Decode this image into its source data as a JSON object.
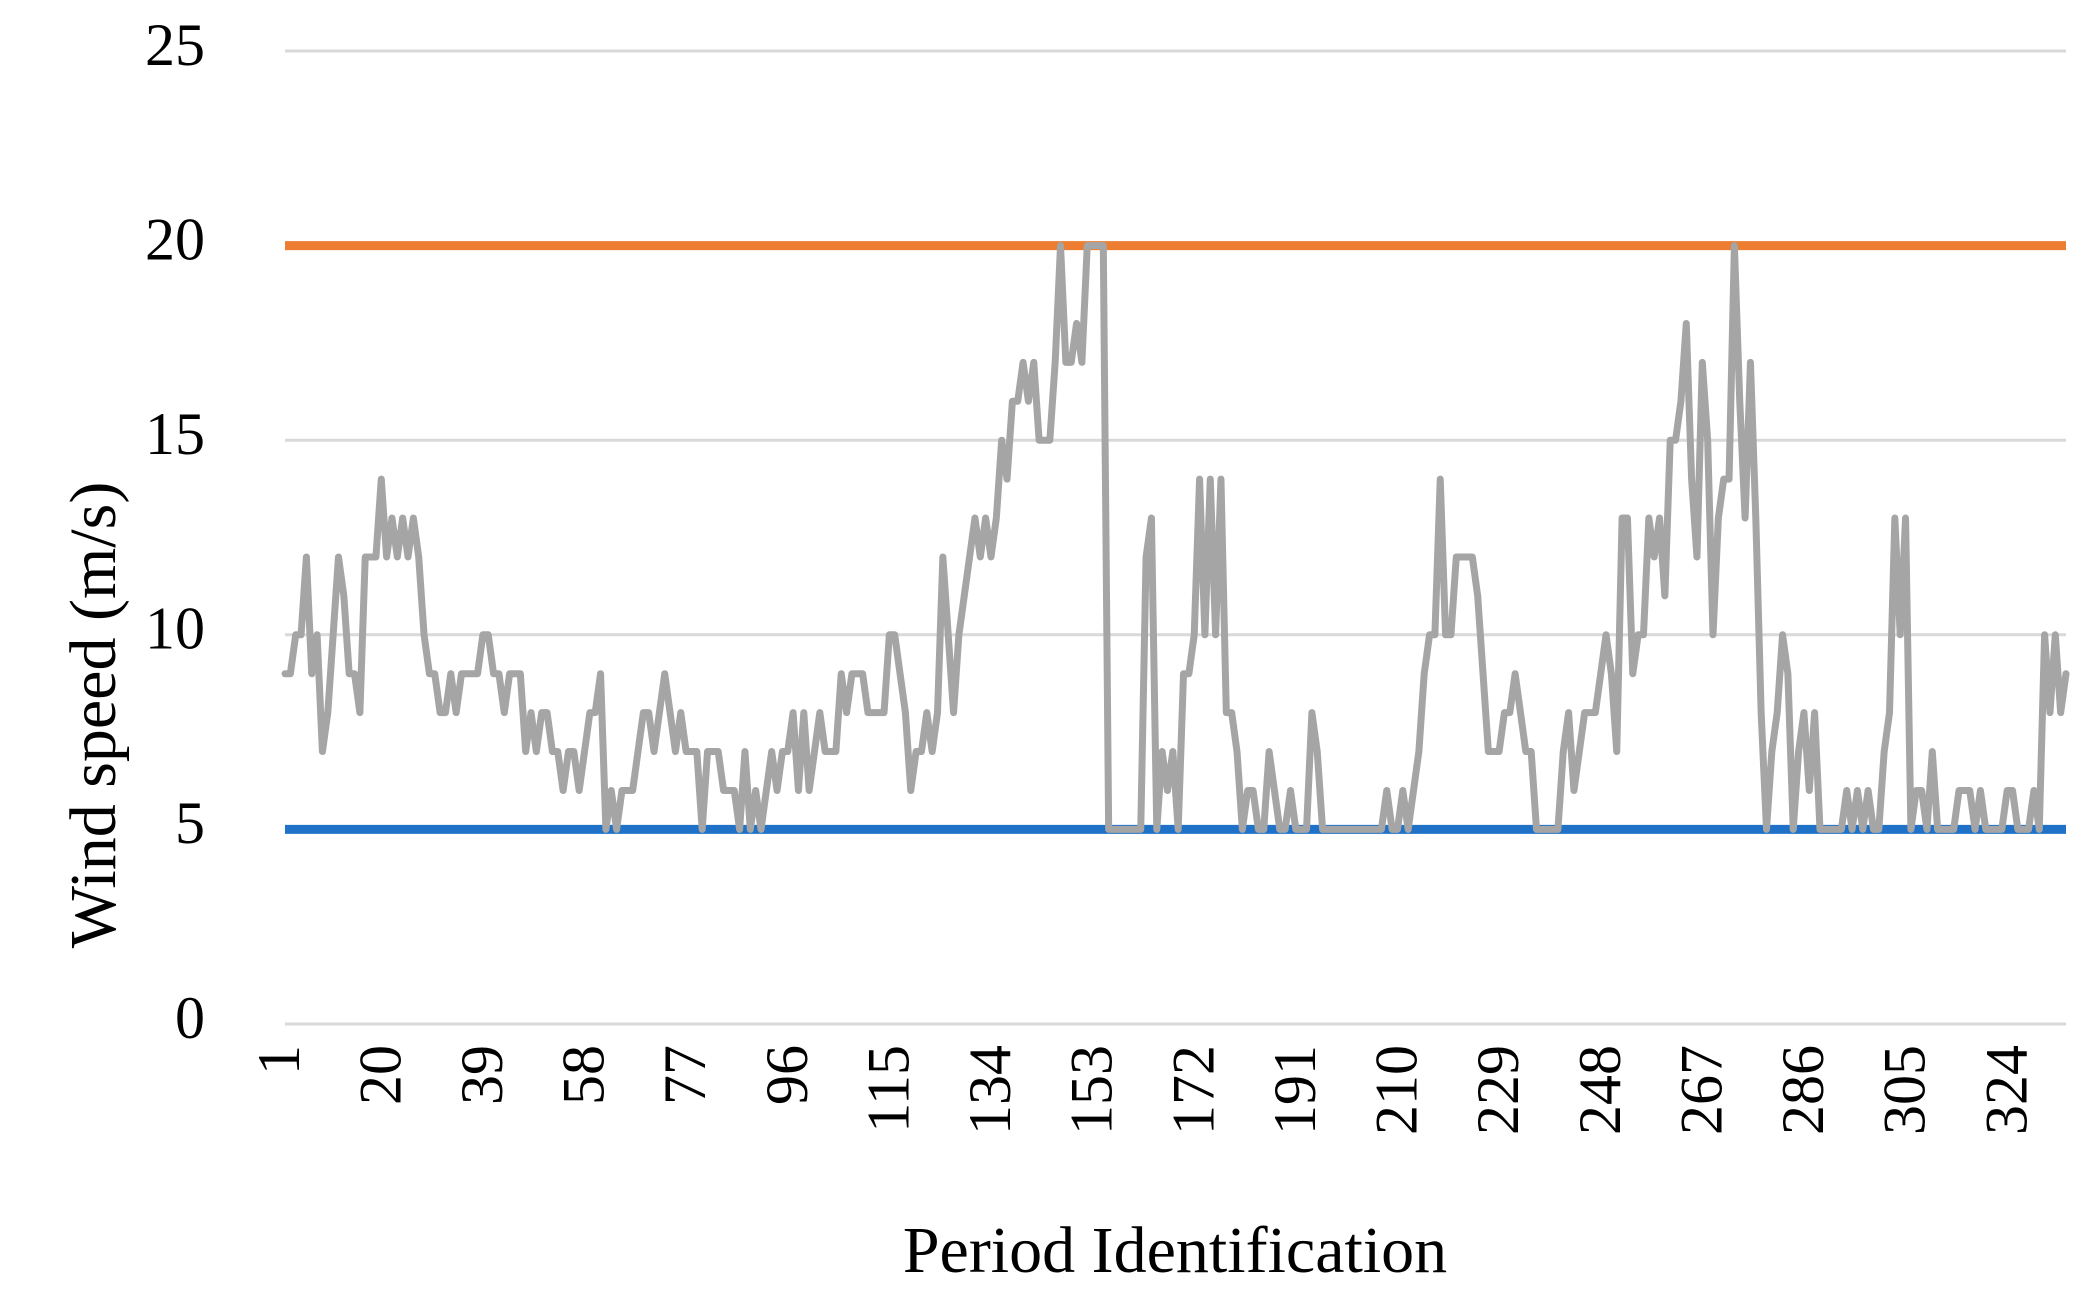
{
  "chart_data": {
    "type": "line",
    "ylabel": "Wind speed (m/s)",
    "xlabel": "Period Identification",
    "xlim": [
      1,
      334
    ],
    "xticks": [
      1,
      20,
      39,
      58,
      77,
      96,
      115,
      134,
      153,
      172,
      191,
      210,
      229,
      248,
      267,
      286,
      305,
      324
    ],
    "ylim": [
      0,
      25
    ],
    "yticks": [
      0,
      5,
      10,
      15,
      20,
      25
    ],
    "grid": true,
    "reference_lines": [
      {
        "value": 20,
        "color": "#ed7d31"
      },
      {
        "value": 5,
        "color": "#1f72c8"
      }
    ],
    "x": [
      1,
      2,
      3,
      4,
      5,
      6,
      7,
      8,
      9,
      10,
      11,
      12,
      13,
      14,
      15,
      16,
      17,
      18,
      19,
      20,
      21,
      22,
      23,
      24,
      25,
      26,
      27,
      28,
      29,
      30,
      31,
      32,
      33,
      34,
      35,
      36,
      37,
      38,
      39,
      40,
      41,
      42,
      43,
      44,
      45,
      46,
      47,
      48,
      49,
      50,
      51,
      52,
      53,
      54,
      55,
      56,
      57,
      58,
      59,
      60,
      61,
      62,
      63,
      64,
      65,
      66,
      67,
      68,
      69,
      70,
      71,
      72,
      73,
      74,
      75,
      76,
      77,
      78,
      79,
      80,
      81,
      82,
      83,
      84,
      85,
      86,
      87,
      88,
      89,
      90,
      91,
      92,
      93,
      94,
      95,
      96,
      97,
      98,
      99,
      100,
      101,
      102,
      103,
      104,
      105,
      106,
      107,
      108,
      109,
      110,
      111,
      112,
      113,
      114,
      115,
      116,
      117,
      118,
      119,
      120,
      121,
      122,
      123,
      124,
      125,
      126,
      127,
      128,
      129,
      130,
      131,
      132,
      133,
      134,
      135,
      136,
      137,
      138,
      139,
      140,
      141,
      142,
      143,
      144,
      145,
      146,
      147,
      148,
      149,
      150,
      151,
      152,
      153,
      154,
      155,
      156,
      157,
      158,
      159,
      160,
      161,
      162,
      163,
      164,
      165,
      166,
      167,
      168,
      169,
      170,
      171,
      172,
      173,
      174,
      175,
      176,
      177,
      178,
      179,
      180,
      181,
      182,
      183,
      184,
      185,
      186,
      187,
      188,
      189,
      190,
      191,
      192,
      193,
      194,
      195,
      196,
      197,
      198,
      199,
      200,
      201,
      202,
      203,
      204,
      205,
      206,
      207,
      208,
      209,
      210,
      211,
      212,
      213,
      214,
      215,
      216,
      217,
      218,
      219,
      220,
      221,
      222,
      223,
      224,
      225,
      226,
      227,
      228,
      229,
      230,
      231,
      232,
      233,
      234,
      235,
      236,
      237,
      238,
      239,
      240,
      241,
      242,
      243,
      244,
      245,
      246,
      247,
      248,
      249,
      250,
      251,
      252,
      253,
      254,
      255,
      256,
      257,
      258,
      259,
      260,
      261,
      262,
      263,
      264,
      265,
      266,
      267,
      268,
      269,
      270,
      271,
      272,
      273,
      274,
      275,
      276,
      277,
      278,
      279,
      280,
      281,
      282,
      283,
      284,
      285,
      286,
      287,
      288,
      289,
      290,
      291,
      292,
      293,
      294,
      295,
      296,
      297,
      298,
      299,
      300,
      301,
      302,
      303,
      304,
      305,
      306,
      307,
      308,
      309,
      310,
      311,
      312,
      313,
      314,
      315,
      316,
      317,
      318,
      319,
      320,
      321,
      322,
      323,
      324,
      325,
      326,
      327,
      328,
      329,
      330,
      331,
      332,
      333,
      334
    ],
    "series": [
      {
        "color": "#a5a5a5",
        "values": [
          9,
          9,
          10,
          10,
          12,
          9,
          10,
          7,
          8,
          10,
          12,
          11,
          9,
          9,
          8,
          12,
          12,
          12,
          14,
          12,
          13,
          12,
          13,
          12,
          13,
          12,
          10,
          9,
          9,
          8,
          8,
          9,
          8,
          9,
          9,
          9,
          9,
          10,
          10,
          9,
          9,
          8,
          9,
          9,
          9,
          7,
          8,
          7,
          8,
          8,
          7,
          7,
          6,
          7,
          7,
          6,
          7,
          8,
          8,
          9,
          5,
          6,
          5,
          6,
          6,
          6,
          7,
          8,
          8,
          7,
          8,
          9,
          8,
          7,
          8,
          7,
          7,
          7,
          5,
          7,
          7,
          7,
          6,
          6,
          6,
          5,
          7,
          5,
          6,
          5,
          6,
          7,
          6,
          7,
          7,
          8,
          6,
          8,
          6,
          7,
          8,
          7,
          7,
          7,
          9,
          8,
          9,
          9,
          9,
          8,
          8,
          8,
          8,
          10,
          10,
          9,
          8,
          6,
          7,
          7,
          8,
          7,
          8,
          12,
          10,
          8,
          10,
          11,
          12,
          13,
          12,
          13,
          12,
          13,
          15,
          14,
          16,
          16,
          17,
          16,
          17,
          15,
          15,
          15,
          17,
          20,
          17,
          17,
          18,
          17,
          20,
          20,
          20,
          20,
          5,
          5,
          5,
          5,
          5,
          5,
          5,
          12,
          13,
          5,
          7,
          6,
          7,
          5,
          9,
          9,
          10,
          14,
          10,
          14,
          10,
          14,
          8,
          8,
          7,
          5,
          6,
          6,
          5,
          5,
          7,
          6,
          5,
          5,
          6,
          5,
          5,
          5,
          8,
          7,
          5,
          5,
          5,
          5,
          5,
          5,
          5,
          5,
          5,
          5,
          5,
          5,
          6,
          5,
          5,
          6,
          5,
          6,
          7,
          9,
          10,
          10,
          14,
          10,
          10,
          12,
          12,
          12,
          12,
          11,
          9,
          7,
          7,
          7,
          8,
          8,
          9,
          8,
          7,
          7,
          5,
          5,
          5,
          5,
          5,
          7,
          8,
          6,
          7,
          8,
          8,
          8,
          9,
          10,
          9,
          7,
          13,
          13,
          9,
          10,
          10,
          13,
          12,
          13,
          11,
          15,
          15,
          16,
          18,
          14,
          12,
          17,
          15,
          10,
          13,
          14,
          14,
          20,
          16,
          13,
          17,
          13,
          8,
          5,
          7,
          8,
          10,
          9,
          5,
          7,
          8,
          6,
          8,
          5,
          5,
          5,
          5,
          5,
          6,
          5,
          6,
          5,
          6,
          5,
          5,
          7,
          8,
          13,
          10,
          13,
          5,
          6,
          6,
          5,
          7,
          5,
          5,
          5,
          5,
          6,
          6,
          6,
          5,
          6,
          5,
          5,
          5,
          5,
          6,
          6,
          5,
          5,
          5,
          6,
          5,
          10,
          8,
          10,
          8,
          9
        ]
      }
    ]
  }
}
